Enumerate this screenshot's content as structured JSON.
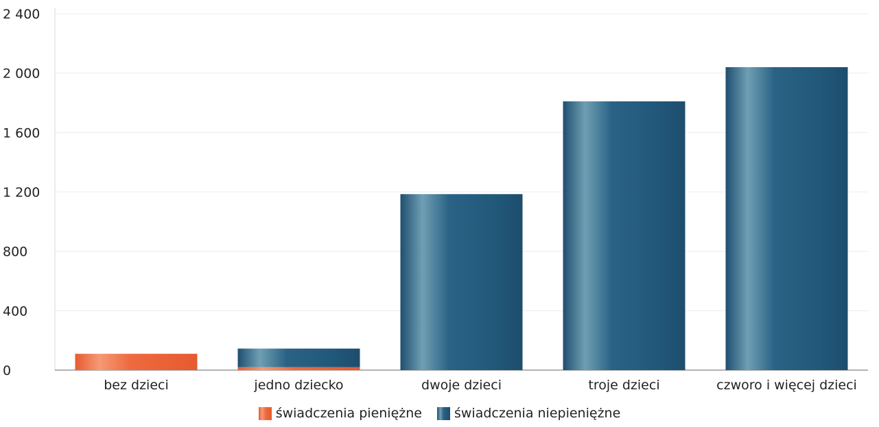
{
  "chart_data": {
    "type": "bar",
    "stacked": true,
    "categories": [
      "bez dzieci",
      "jedno dziecko",
      "dwoje dzieci",
      "troje dzieci",
      "czworo i więcej dzieci"
    ],
    "series": [
      {
        "name": "świadczenia pieniężne",
        "values": [
          110,
          20,
          0,
          0,
          0
        ],
        "color": "#ee6a3f"
      },
      {
        "name": "świadczenia niepieniężne",
        "values": [
          0,
          125,
          1185,
          1810,
          2040
        ],
        "color": "#275d80"
      }
    ],
    "ylim": [
      0,
      2400
    ],
    "yticks": [
      0,
      400,
      800,
      1200,
      1600,
      2000,
      2400
    ],
    "ytick_labels": [
      "0",
      "400",
      "800",
      "1 200",
      "1 600",
      "2 000",
      "2 400"
    ],
    "grid": true,
    "legend_position": "bottom-center",
    "title": "",
    "xlabel": "",
    "ylabel": ""
  }
}
